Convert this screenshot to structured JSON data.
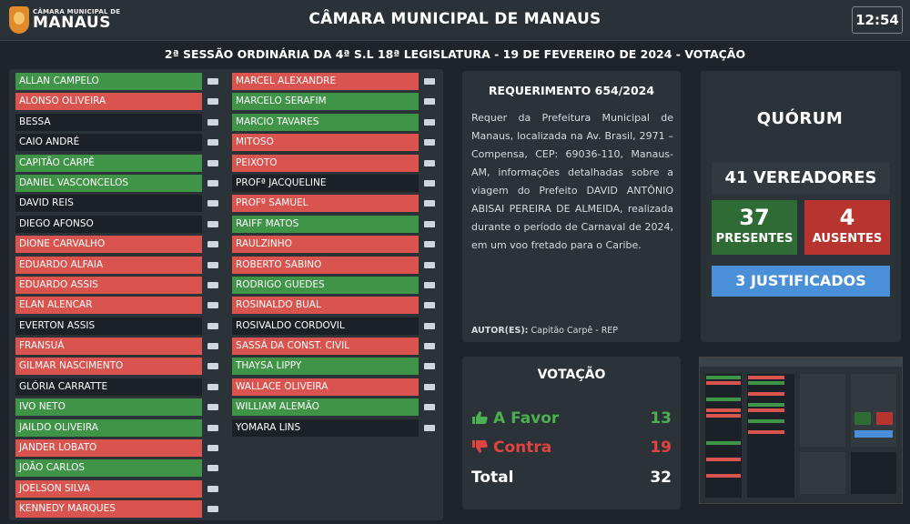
{
  "header": {
    "logo_small": "CÂMARA MUNICIPAL DE",
    "logo_big": "MANAUS",
    "title": "CÂMARA MUNICIPAL DE MANAUS",
    "clock": "12:54"
  },
  "session": "2ª SESSÃO ORDINÁRIA DA 4ª S.L 18ª LEGISLATURA - 19 DE FEVEREIRO DE 2024 - VOTAÇÃO",
  "councillors_left": [
    {
      "name": "ALLAN CAMPELO",
      "vote": "yes"
    },
    {
      "name": "ALONSO OLIVEIRA",
      "vote": "no"
    },
    {
      "name": "BESSA",
      "vote": "none"
    },
    {
      "name": "CAIO ANDRÉ",
      "vote": "none"
    },
    {
      "name": "CAPITÃO CARPÊ",
      "vote": "yes"
    },
    {
      "name": "DANIEL VASCONCELOS",
      "vote": "yes"
    },
    {
      "name": "DAVID REIS",
      "vote": "none"
    },
    {
      "name": "DIEGO AFONSO",
      "vote": "none"
    },
    {
      "name": "DIONE CARVALHO",
      "vote": "no"
    },
    {
      "name": "EDUARDO ALFAIA",
      "vote": "no"
    },
    {
      "name": "EDUARDO ASSIS",
      "vote": "no"
    },
    {
      "name": "ELAN ALENCAR",
      "vote": "no"
    },
    {
      "name": "EVERTON ASSIS",
      "vote": "none"
    },
    {
      "name": "FRANSUÁ",
      "vote": "no"
    },
    {
      "name": "GILMAR NASCIMENTO",
      "vote": "no"
    },
    {
      "name": "GLÓRIA CARRATTE",
      "vote": "none"
    },
    {
      "name": "IVO NETO",
      "vote": "yes"
    },
    {
      "name": "JAILDO OLIVEIRA",
      "vote": "yes"
    },
    {
      "name": "JANDER LOBATO",
      "vote": "no"
    },
    {
      "name": "JOÃO CARLOS",
      "vote": "yes"
    },
    {
      "name": "JOELSON SILVA",
      "vote": "no"
    },
    {
      "name": "KENNEDY MARQUES",
      "vote": "no"
    }
  ],
  "councillors_right": [
    {
      "name": "MARCEL ALEXANDRE",
      "vote": "no"
    },
    {
      "name": "MARCELO SERAFIM",
      "vote": "yes"
    },
    {
      "name": "MARCIO TAVARES",
      "vote": "yes"
    },
    {
      "name": "MITOSO",
      "vote": "no"
    },
    {
      "name": "PEIXOTO",
      "vote": "no"
    },
    {
      "name": "PROFª JACQUELINE",
      "vote": "none"
    },
    {
      "name": "PROFº SAMUEL",
      "vote": "no"
    },
    {
      "name": "RAIFF MATOS",
      "vote": "yes"
    },
    {
      "name": "RAULZINHO",
      "vote": "no"
    },
    {
      "name": "ROBERTO SABINO",
      "vote": "no"
    },
    {
      "name": "RODRIGO GUEDES",
      "vote": "yes"
    },
    {
      "name": "ROSINALDO BUAL",
      "vote": "no"
    },
    {
      "name": "ROSIVALDO CORDOVIL",
      "vote": "none"
    },
    {
      "name": "SASSÁ DA CONST. CIVIL",
      "vote": "no"
    },
    {
      "name": "THAYSA LIPPY",
      "vote": "yes"
    },
    {
      "name": "WALLACE OLIVEIRA",
      "vote": "no"
    },
    {
      "name": "WILLIAM ALEMÃO",
      "vote": "yes"
    },
    {
      "name": "YOMARA LINS",
      "vote": "none"
    }
  ],
  "requerimento": {
    "title": "REQUERIMENTO 654/2024",
    "text": "Requer da Prefeitura Municipal de Manaus, localizada na Av. Brasil, 2971 – Compensa, CEP: 69036-110, Manaus-AM, informações detalhadas sobre a viagem do Prefeito DAVID ANTÔNIO ABISAI PEREIRA DE ALMEIDA, realizada durante o período de Carnaval de 2024, em um voo fretado para o Caribe.",
    "author_label": "AUTOR(ES):",
    "author": "Capitão Carpê - REP"
  },
  "votacao": {
    "title": "VOTAÇÃO",
    "favor_label": "A Favor",
    "favor_value": "13",
    "contra_label": "Contra",
    "contra_value": "19",
    "total_label": "Total",
    "total_value": "32"
  },
  "quorum": {
    "title": "QUÓRUM",
    "vereadores": "41 VEREADORES",
    "presentes_num": "37",
    "presentes_label": "PRESENTES",
    "ausentes_num": "4",
    "ausentes_label": "AUSENTES",
    "justificados": "3 JUSTIFICADOS"
  },
  "colors": {
    "yes": "#3f9447",
    "no": "#d9534f",
    "none": "#1b2126",
    "favor": "#4caf50",
    "contra": "#e0443e",
    "justificados": "#4a90d9"
  },
  "icons": {
    "favor": "thumbs-up-icon",
    "contra": "thumbs-down-icon"
  }
}
